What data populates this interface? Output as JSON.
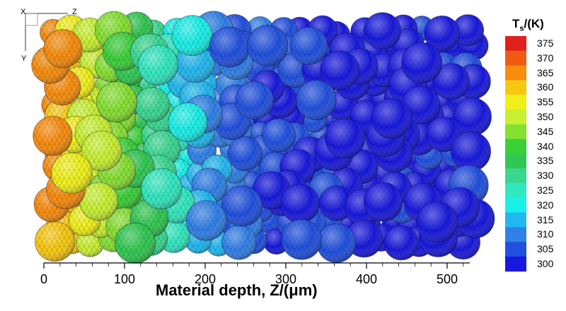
{
  "axes": {
    "x_title_main": "Material depth, Z/(",
    "x_title_unit": "μm",
    "x_title_close": ")",
    "x_ticks": [
      "0",
      "100",
      "200",
      "300",
      "400",
      "500"
    ]
  },
  "legend": {
    "title_main": "T",
    "title_sub": "s",
    "title_unit": "/(K)",
    "values": [
      "375",
      "370",
      "365",
      "360",
      "355",
      "350",
      "345",
      "340",
      "335",
      "330",
      "325",
      "320",
      "315",
      "310",
      "305",
      "300"
    ],
    "colors": [
      "#e0201a",
      "#f05a14",
      "#f88c0c",
      "#f8c810",
      "#f0f018",
      "#c8f030",
      "#86e030",
      "#3ad038",
      "#30c850",
      "#38d890",
      "#30e8c0",
      "#18f0e8",
      "#20b8f0",
      "#3080e8",
      "#2050e0",
      "#1818e0"
    ]
  },
  "triad": {
    "x": "X",
    "z": "Z",
    "y": "Y"
  },
  "temperature_profile_K": {
    "depth_um": [
      0,
      100,
      200,
      300,
      400,
      500
    ],
    "temperature": [
      368,
      340,
      312,
      302,
      300,
      300
    ]
  }
}
